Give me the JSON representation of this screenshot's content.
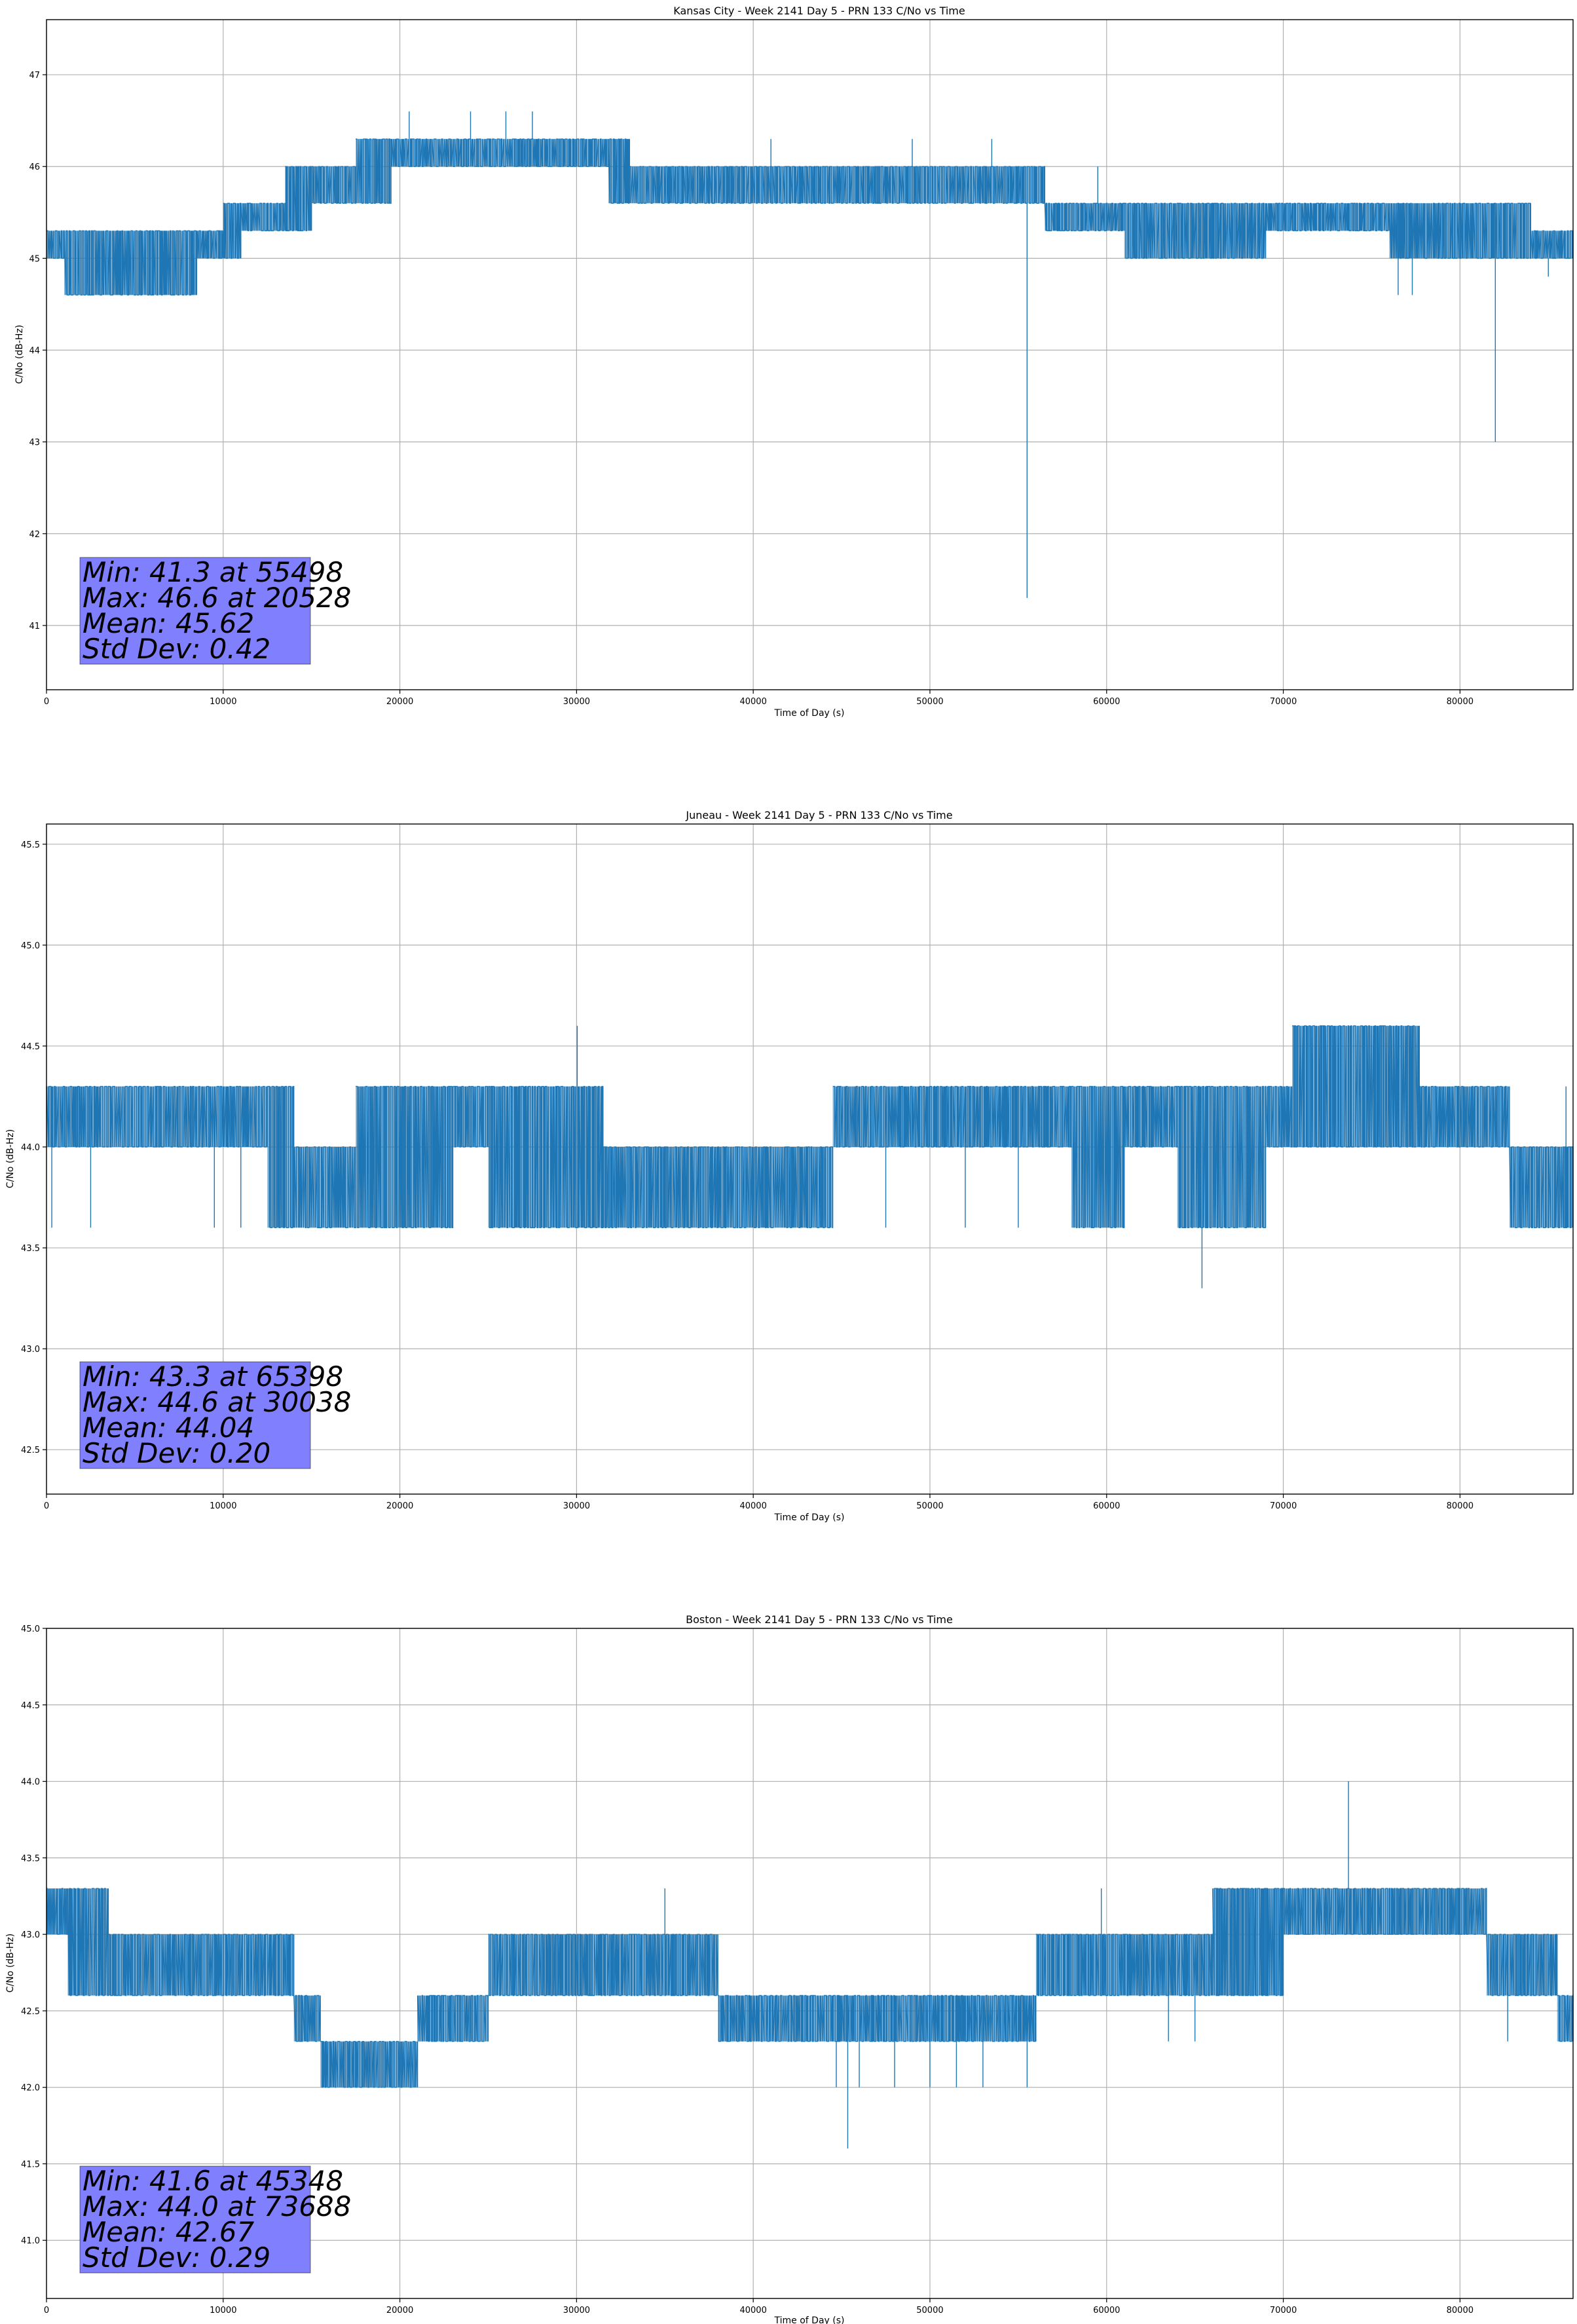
{
  "chart_data": [
    {
      "type": "line",
      "title": "Kansas City - Week 2141 Day 5 - PRN 133 C/No vs Time",
      "xlabel": "Time of Day (s)",
      "ylabel": "C/No (dB-Hz)",
      "xlim": [
        0,
        86400
      ],
      "ylim": [
        40.3,
        47.6
      ],
      "xticks": [
        0,
        10000,
        20000,
        30000,
        40000,
        50000,
        60000,
        70000,
        80000
      ],
      "yticks": [
        41,
        42,
        43,
        44,
        45,
        46,
        47
      ],
      "ytick_labels": [
        "41",
        "42",
        "43",
        "44",
        "45",
        "46",
        "47"
      ],
      "grid": true,
      "color": "#1f77b4",
      "stats": [
        "Min: 41.3 at 55498",
        "Max: 46.6 at 20528",
        "Mean: 45.62",
        "Std Dev: 0.42"
      ],
      "bands": [
        {
          "x": [
            0,
            1000
          ],
          "y": [
            45.0,
            45.3
          ]
        },
        {
          "x": [
            1000,
            8500
          ],
          "y": [
            44.6,
            45.3
          ]
        },
        {
          "x": [
            8500,
            10000
          ],
          "y": [
            45.0,
            45.3
          ]
        },
        {
          "x": [
            10000,
            11000
          ],
          "y": [
            45.0,
            45.6
          ]
        },
        {
          "x": [
            11000,
            13500
          ],
          "y": [
            45.3,
            45.6
          ]
        },
        {
          "x": [
            13500,
            15000
          ],
          "y": [
            45.3,
            46.0
          ]
        },
        {
          "x": [
            15000,
            17500
          ],
          "y": [
            45.6,
            46.0
          ]
        },
        {
          "x": [
            17500,
            19500
          ],
          "y": [
            45.6,
            46.3
          ]
        },
        {
          "x": [
            19500,
            31800
          ],
          "y": [
            46.0,
            46.3
          ]
        },
        {
          "x": [
            31800,
            33000
          ],
          "y": [
            45.6,
            46.3
          ]
        },
        {
          "x": [
            33000,
            36000
          ],
          "y": [
            45.6,
            46.0
          ]
        },
        {
          "x": [
            36000,
            56500
          ],
          "y": [
            45.6,
            46.0
          ]
        },
        {
          "x": [
            56500,
            61000
          ],
          "y": [
            45.3,
            45.6
          ]
        },
        {
          "x": [
            61000,
            69000
          ],
          "y": [
            45.0,
            45.6
          ]
        },
        {
          "x": [
            69000,
            76000
          ],
          "y": [
            45.3,
            45.6
          ]
        },
        {
          "x": [
            76000,
            84000
          ],
          "y": [
            45.0,
            45.6
          ]
        },
        {
          "x": [
            84000,
            86400
          ],
          "y": [
            45.0,
            45.3
          ]
        }
      ],
      "spikes": [
        {
          "x": 55498,
          "y": [
            45.6,
            41.3
          ]
        },
        {
          "x": 82000,
          "y": [
            45.6,
            43.0
          ]
        },
        {
          "x": 8300,
          "y": [
            44.6,
            45.3
          ]
        },
        {
          "x": 20528,
          "y": [
            46.3,
            46.6
          ]
        },
        {
          "x": 24000,
          "y": [
            46.3,
            46.6
          ]
        },
        {
          "x": 26000,
          "y": [
            46.3,
            46.6
          ]
        },
        {
          "x": 27500,
          "y": [
            46.3,
            46.6
          ]
        },
        {
          "x": 41000,
          "y": [
            46.0,
            46.3
          ]
        },
        {
          "x": 49000,
          "y": [
            46.0,
            46.3
          ]
        },
        {
          "x": 53500,
          "y": [
            46.0,
            46.3
          ]
        },
        {
          "x": 59500,
          "y": [
            45.6,
            46.0
          ]
        },
        {
          "x": 76500,
          "y": [
            45.0,
            44.6
          ]
        },
        {
          "x": 77300,
          "y": [
            45.0,
            44.6
          ]
        },
        {
          "x": 85000,
          "y": [
            45.0,
            44.8
          ]
        }
      ]
    },
    {
      "type": "line",
      "title": "Juneau - Week 2141 Day 5 - PRN 133 C/No vs Time",
      "xlabel": "Time of Day (s)",
      "ylabel": "C/No (dB-Hz)",
      "xlim": [
        0,
        86400
      ],
      "ylim": [
        42.28,
        45.6
      ],
      "xticks": [
        0,
        10000,
        20000,
        30000,
        40000,
        50000,
        60000,
        70000,
        80000
      ],
      "yticks": [
        42.5,
        43.0,
        43.5,
        44.0,
        44.5,
        45.0,
        45.5
      ],
      "ytick_labels": [
        "42.5",
        "43.0",
        "43.5",
        "44.0",
        "44.5",
        "45.0",
        "45.5"
      ],
      "grid": true,
      "color": "#1f77b4",
      "stats": [
        "Min: 43.3 at 65398",
        "Max: 44.6 at 30038",
        "Mean: 44.04",
        "Std Dev: 0.20"
      ],
      "bands": [
        {
          "x": [
            0,
            12500
          ],
          "y": [
            44.0,
            44.3
          ]
        },
        {
          "x": [
            12500,
            14000
          ],
          "y": [
            43.6,
            44.3
          ]
        },
        {
          "x": [
            14000,
            17500
          ],
          "y": [
            43.6,
            44.0
          ]
        },
        {
          "x": [
            17500,
            23000
          ],
          "y": [
            43.6,
            44.3
          ]
        },
        {
          "x": [
            23000,
            25000
          ],
          "y": [
            44.0,
            44.3
          ]
        },
        {
          "x": [
            25000,
            31500
          ],
          "y": [
            43.6,
            44.3
          ]
        },
        {
          "x": [
            31500,
            37000
          ],
          "y": [
            43.6,
            44.0
          ]
        },
        {
          "x": [
            37000,
            44500
          ],
          "y": [
            43.6,
            44.0
          ]
        },
        {
          "x": [
            44500,
            58000
          ],
          "y": [
            44.0,
            44.3
          ]
        },
        {
          "x": [
            58000,
            61000
          ],
          "y": [
            43.6,
            44.3
          ]
        },
        {
          "x": [
            61000,
            64000
          ],
          "y": [
            44.0,
            44.3
          ]
        },
        {
          "x": [
            64000,
            69000
          ],
          "y": [
            43.6,
            44.3
          ]
        },
        {
          "x": [
            69000,
            70500
          ],
          "y": [
            44.0,
            44.3
          ]
        },
        {
          "x": [
            70500,
            77700
          ],
          "y": [
            44.0,
            44.6
          ]
        },
        {
          "x": [
            77700,
            82800
          ],
          "y": [
            44.0,
            44.3
          ]
        },
        {
          "x": [
            82800,
            86400
          ],
          "y": [
            43.6,
            44.0
          ]
        }
      ],
      "spikes": [
        {
          "x": 30038,
          "y": [
            44.3,
            44.6
          ]
        },
        {
          "x": 65398,
          "y": [
            43.6,
            43.3
          ]
        },
        {
          "x": 300,
          "y": [
            44.0,
            43.6
          ]
        },
        {
          "x": 2500,
          "y": [
            44.0,
            43.6
          ]
        },
        {
          "x": 9500,
          "y": [
            44.0,
            43.6
          ]
        },
        {
          "x": 11000,
          "y": [
            44.0,
            43.6
          ]
        },
        {
          "x": 47500,
          "y": [
            44.0,
            43.6
          ]
        },
        {
          "x": 52000,
          "y": [
            44.0,
            43.6
          ]
        },
        {
          "x": 55000,
          "y": [
            44.0,
            43.6
          ]
        },
        {
          "x": 86000,
          "y": [
            44.0,
            44.3
          ]
        }
      ]
    },
    {
      "type": "line",
      "title": "Boston - Week 2141 Day 5 - PRN 133 C/No vs Time",
      "xlabel": "Time of Day (s)",
      "ylabel": "C/No (dB-Hz)",
      "xlim": [
        0,
        86400
      ],
      "ylim": [
        40.62,
        45.0
      ],
      "xticks": [
        0,
        10000,
        20000,
        30000,
        40000,
        50000,
        60000,
        70000,
        80000
      ],
      "yticks": [
        41.0,
        41.5,
        42.0,
        42.5,
        43.0,
        43.5,
        44.0,
        44.5,
        45.0
      ],
      "ytick_labels": [
        "41.0",
        "41.5",
        "42.0",
        "42.5",
        "43.0",
        "43.5",
        "44.0",
        "44.5",
        "45.0"
      ],
      "grid": true,
      "color": "#1f77b4",
      "stats": [
        "Min: 41.6 at 45348",
        "Max: 44.0 at 73688",
        "Mean: 42.67",
        "Std Dev: 0.29"
      ],
      "bands": [
        {
          "x": [
            0,
            1200
          ],
          "y": [
            43.0,
            43.3
          ]
        },
        {
          "x": [
            1200,
            3500
          ],
          "y": [
            42.6,
            43.3
          ]
        },
        {
          "x": [
            3500,
            14000
          ],
          "y": [
            42.6,
            43.0
          ]
        },
        {
          "x": [
            14000,
            15500
          ],
          "y": [
            42.3,
            42.6
          ]
        },
        {
          "x": [
            15500,
            21000
          ],
          "y": [
            42.0,
            42.3
          ]
        },
        {
          "x": [
            21000,
            25000
          ],
          "y": [
            42.3,
            42.6
          ]
        },
        {
          "x": [
            25000,
            38000
          ],
          "y": [
            42.6,
            43.0
          ]
        },
        {
          "x": [
            38000,
            44500
          ],
          "y": [
            42.3,
            42.6
          ]
        },
        {
          "x": [
            44500,
            56000
          ],
          "y": [
            42.3,
            42.6
          ]
        },
        {
          "x": [
            56000,
            61000
          ],
          "y": [
            42.6,
            43.0
          ]
        },
        {
          "x": [
            61000,
            66000
          ],
          "y": [
            42.6,
            43.0
          ]
        },
        {
          "x": [
            66000,
            70000
          ],
          "y": [
            42.6,
            43.3
          ]
        },
        {
          "x": [
            70000,
            74000
          ],
          "y": [
            43.0,
            43.3
          ]
        },
        {
          "x": [
            74000,
            81500
          ],
          "y": [
            43.0,
            43.3
          ]
        },
        {
          "x": [
            81500,
            85500
          ],
          "y": [
            42.6,
            43.0
          ]
        },
        {
          "x": [
            85500,
            86400
          ],
          "y": [
            42.3,
            42.6
          ]
        }
      ],
      "spikes": [
        {
          "x": 45348,
          "y": [
            42.3,
            41.6
          ]
        },
        {
          "x": 73688,
          "y": [
            43.3,
            44.0
          ]
        },
        {
          "x": 35000,
          "y": [
            43.0,
            43.3
          ]
        },
        {
          "x": 59700,
          "y": [
            43.0,
            43.3
          ]
        },
        {
          "x": 82700,
          "y": [
            42.6,
            42.3
          ]
        },
        {
          "x": 44700,
          "y": [
            42.3,
            42.0
          ]
        },
        {
          "x": 46000,
          "y": [
            42.3,
            42.0
          ]
        },
        {
          "x": 48000,
          "y": [
            42.3,
            42.0
          ]
        },
        {
          "x": 50000,
          "y": [
            42.3,
            42.0
          ]
        },
        {
          "x": 51500,
          "y": [
            42.3,
            42.0
          ]
        },
        {
          "x": 53000,
          "y": [
            42.3,
            42.0
          ]
        },
        {
          "x": 55500,
          "y": [
            42.3,
            42.0
          ]
        },
        {
          "x": 63500,
          "y": [
            42.6,
            42.3
          ]
        },
        {
          "x": 65000,
          "y": [
            42.6,
            42.3
          ]
        }
      ]
    }
  ]
}
